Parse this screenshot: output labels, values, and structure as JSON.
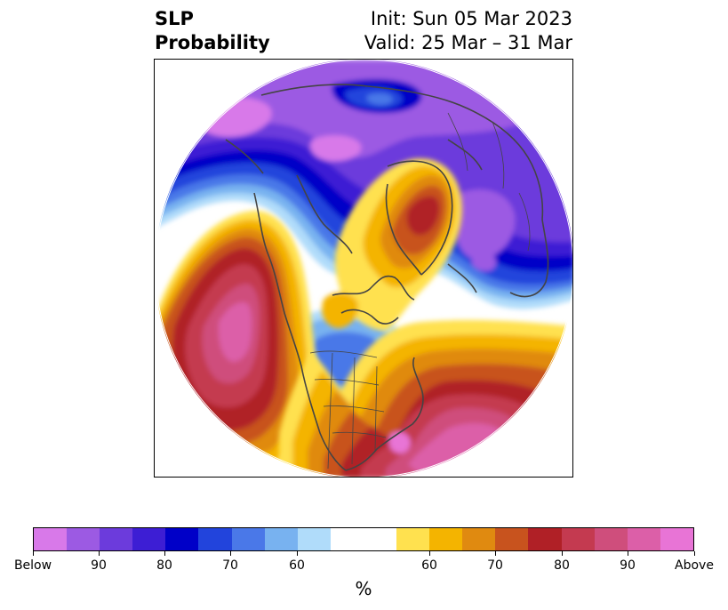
{
  "header": {
    "variable": "SLP",
    "product": "Probability",
    "init": "Init: Sun 05 Mar 2023",
    "valid": "Valid: 25 Mar – 31 Mar"
  },
  "map": {
    "projection": "north-polar-stereographic",
    "features": [
      "coastlines",
      "country-borders",
      "state-borders"
    ]
  },
  "colorbar": {
    "label": "%",
    "colors": [
      "#d879e9",
      "#9c5ae3",
      "#6c3bdc",
      "#3d1ed4",
      "#0000c8",
      "#2244dc",
      "#4a78e8",
      "#78b2f0",
      "#b0dcfa",
      "#ffffff",
      "#ffe14f",
      "#f4b400",
      "#e08a10",
      "#c8531e",
      "#b02026",
      "#c43a50",
      "#cf4e7c",
      "#dc5fa8",
      "#e874d6"
    ],
    "tick_labels": [
      "Below",
      "90",
      "80",
      "70",
      "60",
      "60",
      "70",
      "80",
      "90",
      "Above"
    ],
    "below_side": "Below normal",
    "above_side": "Above normal"
  },
  "regions": [
    {
      "name": "north-pacific-positive",
      "category": "above",
      "peak": "Above"
    },
    {
      "name": "eastern-us-atlantic-positive",
      "category": "above",
      "peak": "Above"
    },
    {
      "name": "greenland-high",
      "category": "above",
      "peak": "80"
    },
    {
      "name": "siberia-arctic-low",
      "category": "below",
      "peak": "Below"
    },
    {
      "name": "europe-low",
      "category": "below",
      "peak": "80"
    },
    {
      "name": "canada-low",
      "category": "below",
      "peak": "70"
    }
  ]
}
